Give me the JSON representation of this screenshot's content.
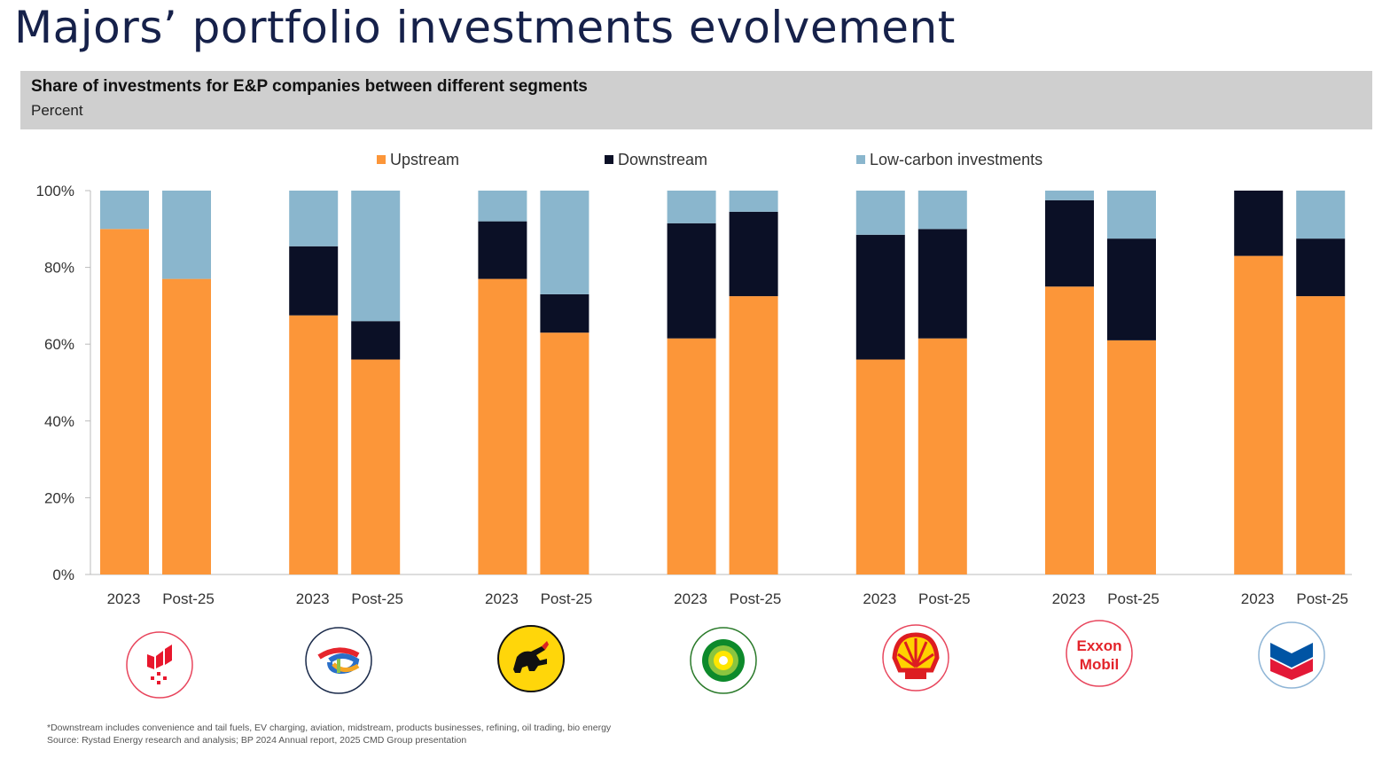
{
  "title": "Majors’ portfolio investments evolvement",
  "banner": {
    "title": "Share of investments for E&P companies between different segments",
    "subtitle": "Percent"
  },
  "colors": {
    "upstream": "#fc9639",
    "downstream": "#0b1026",
    "low_carbon": "#8ab6cd",
    "axis": "#bbbbbb",
    "text": "#333333"
  },
  "chart_data": {
    "type": "bar",
    "stacked": true,
    "ylim": [
      0,
      100
    ],
    "yticks": [
      "0%",
      "20%",
      "40%",
      "60%",
      "80%",
      "100%"
    ],
    "legend_position": "top",
    "grid": false,
    "groups": [
      {
        "company": "Equinor",
        "logo_icon": "equinor-logo-icon",
        "bars": [
          {
            "label": "2023",
            "upstream": 90,
            "downstream": 0,
            "low_carbon": 10
          },
          {
            "label": "Post-25",
            "upstream": 77,
            "downstream": 0,
            "low_carbon": 23
          }
        ]
      },
      {
        "company": "TotalEnergies",
        "logo_icon": "totalenergies-logo-icon",
        "bars": [
          {
            "label": "2023",
            "upstream": 67.5,
            "downstream": 18,
            "low_carbon": 14.5
          },
          {
            "label": "Post-25",
            "upstream": 56,
            "downstream": 10,
            "low_carbon": 34
          }
        ]
      },
      {
        "company": "Eni",
        "logo_icon": "eni-logo-icon",
        "bars": [
          {
            "label": "2023",
            "upstream": 77,
            "downstream": 15,
            "low_carbon": 8
          },
          {
            "label": "Post-25",
            "upstream": 63,
            "downstream": 10,
            "low_carbon": 27
          }
        ]
      },
      {
        "company": "BP",
        "logo_icon": "bp-logo-icon",
        "bars": [
          {
            "label": "2023",
            "upstream": 61.5,
            "downstream": 30,
            "low_carbon": 8.5
          },
          {
            "label": "Post-25",
            "upstream": 72.5,
            "downstream": 22,
            "low_carbon": 5.5
          }
        ]
      },
      {
        "company": "Shell",
        "logo_icon": "shell-logo-icon",
        "bars": [
          {
            "label": "2023",
            "upstream": 56,
            "downstream": 32.5,
            "low_carbon": 11.5
          },
          {
            "label": "Post-25",
            "upstream": 61.5,
            "downstream": 28.5,
            "low_carbon": 10
          }
        ]
      },
      {
        "company": "ExxonMobil",
        "logo_icon": "exxonmobil-logo-icon",
        "logo_text": [
          "Exxon",
          "Mobil"
        ],
        "bars": [
          {
            "label": "2023",
            "upstream": 75,
            "downstream": 22.5,
            "low_carbon": 2.5
          },
          {
            "label": "Post-25",
            "upstream": 61,
            "downstream": 26.5,
            "low_carbon": 12.5
          }
        ]
      },
      {
        "company": "Chevron",
        "logo_icon": "chevron-logo-icon",
        "bars": [
          {
            "label": "2023",
            "upstream": 83,
            "downstream": 17,
            "low_carbon": 0
          },
          {
            "label": "Post-25",
            "upstream": 72.5,
            "downstream": 15,
            "low_carbon": 12.5
          }
        ]
      }
    ],
    "series": [
      {
        "key": "upstream",
        "name": "Upstream"
      },
      {
        "key": "downstream",
        "name": "Downstream"
      },
      {
        "key": "low_carbon",
        "name": "Low-carbon investments"
      }
    ]
  },
  "footnotes": [
    "*Downstream includes convenience and tail fuels, EV charging, aviation, midstream, products businesses, refining, oil trading, bio energy",
    "Source: Rystad Energy research and analysis; BP 2024 Annual report, 2025 CMD Group presentation"
  ]
}
